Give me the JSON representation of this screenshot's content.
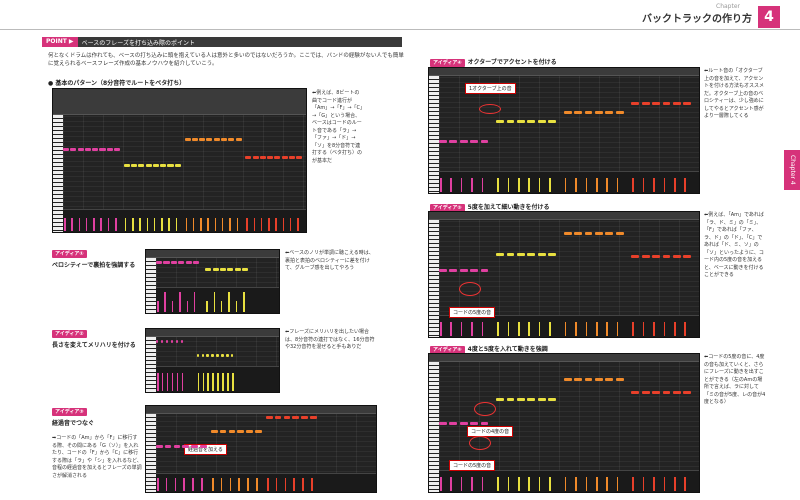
{
  "header": {
    "chapter_small": "Chapter",
    "chapter_title": "バックトラックの作り方",
    "chapter_number": "4",
    "side_tab": "Chapter 4"
  },
  "point": {
    "tag": "POINT ▶",
    "title": "ベースのフレーズを打ち込み際のポイント"
  },
  "intro": "何となくドラムは作れても、ベースの打ち込みに頭を抱えている人は意外と多いのではないだろうか。ここでは、バンドの経験がない人でも簡単に覚えられるベースフレーズ作成の基本ノウハウを紹介していこう。",
  "sections": {
    "basic": {
      "title": "● 基本のパターン（8分音符でルートをベタ打ち）",
      "caption": "⬅例えば、8ビートの曲でコード進行が「Am」→「F」→「C」→「G」という場合、ベースはコードのルート音である「ラ」→「ファ」→「ド」→「ソ」を8分音符で連打する（ベタ打ち）のが基本だ"
    },
    "idea1": {
      "tag": "アイディア①",
      "title": "ベロシティーで裏拍を強調する",
      "caption": "⬅ベースのノリが単調に聴こえる時は、裏拍と表拍のベロシティーに差を付けて、グルーブ感を出してやろう"
    },
    "idea2": {
      "tag": "アイディア②",
      "title": "長さを変えてメリハリを付ける",
      "caption": "⬅フレーズにメリハリを出したい場合は、8分音符の連打ではなく、16分音符や32分音符を混ぜると手もありだ"
    },
    "idea3": {
      "tag": "アイディア③",
      "title": "経過音でつなぐ",
      "caption": "➡コードの「Am」から「F」に移行する際、その間にある「G（ソ）」を入れたり、コードの「F」から「C」に移行する際は「ラ」や「シ」を入れるなど、音程の経過音を加えるとフレーズの単調さが解消される",
      "label": "経過音を加える"
    },
    "idea4": {
      "tag": "アイディア④",
      "title": "オクターブでアクセントを付ける",
      "caption": "⬅ルート音の「オクターブ上の音を加えて、アクセントを付ける方法もオススメだ。オクターブ上の音のベロシティーは、少し強めにしてやるとアクセント感がより一層際してくる",
      "label": "1オクターブ上の音"
    },
    "idea5": {
      "tag": "アイディア⑤",
      "title": "5度を加えて細い動きを付ける",
      "caption": "⬅例えば、「Am」であれば「ラ、ド、ミ」の「ミ」、「F」であれば「ファ、ラ、ド」の「ド」、「C」であれば「ド、ミ、ソ」の「ソ」といったように、コード内の5度の音を加えると、ベースに動きを付けることができる",
      "label": "コードの5度の音"
    },
    "idea6": {
      "tag": "アイディア⑥",
      "title": "4度と5度を入れて動きを強調",
      "caption": "⬅コードの5度の音に、4度の音も加えていくと、さらにフレーズに動きを出すことができる（左のAmの場所で言えば、ラに対して「ミの音が5度、レの音が4度となる）",
      "label_a": "コードの4度の音",
      "label_b": "コードの5度の音"
    }
  },
  "colors": {
    "accent": "#d6327a",
    "note_pink": "#e040a0",
    "note_yellow": "#e8e040",
    "note_orange": "#f08a2a",
    "note_red": "#e8402a",
    "daw_bg": "#232323"
  }
}
